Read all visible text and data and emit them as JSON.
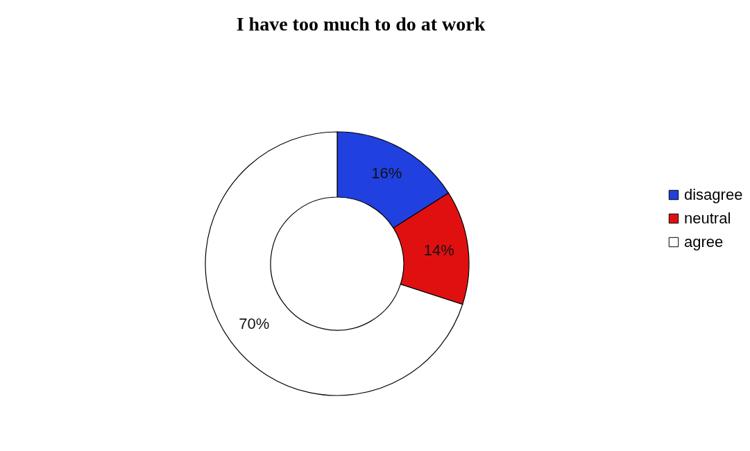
{
  "chart_data": {
    "type": "donut",
    "title": "I have too much to do at work",
    "categories": [
      "disagree",
      "neutral",
      "agree"
    ],
    "values": [
      16,
      14,
      70
    ],
    "colors": [
      "#2040e0",
      "#e01010",
      "#ffffff"
    ],
    "value_labels": [
      "16%",
      "14%",
      "70%"
    ],
    "legend": "right"
  }
}
